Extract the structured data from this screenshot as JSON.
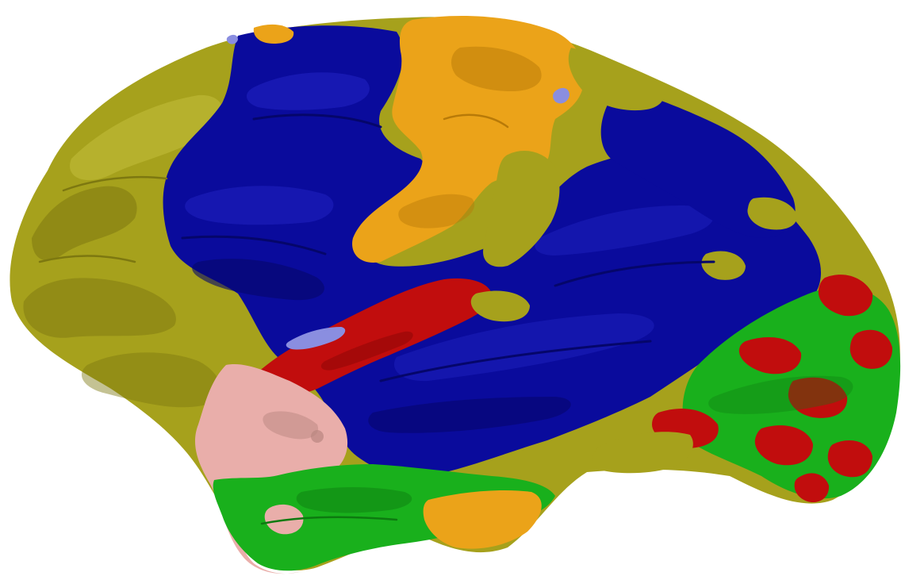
{
  "image": {
    "subject": "brain-cortical-surface-lateral-view",
    "background": "#ffffff"
  },
  "colors": {
    "olive": "#a6a11c",
    "olive_dark": "#7d7810",
    "olive_light": "#c2bd38",
    "blue": "#0a0b9c",
    "blue_dark": "#05066a",
    "blue_light": "#2224c4",
    "orange": "#eba319",
    "orange_dark": "#b87a08",
    "red": "#c10d0d",
    "red_dark": "#8a0606",
    "green": "#19b01c",
    "green_dark": "#0d7a10",
    "pink": "#e9aeaa",
    "pink_dark": "#b98680",
    "lavender": "#8a8ee0"
  }
}
